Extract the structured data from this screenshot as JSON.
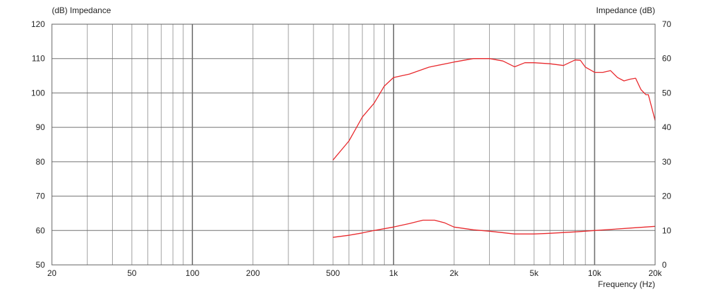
{
  "chart_data": {
    "type": "line",
    "title": "",
    "ylabel_left": "(dB)  Impedance",
    "ylabel_right": "Impedance  (dB)",
    "xlabel": "Frequency  (Hz)",
    "x_scale": "log",
    "xlim": [
      20,
      20000
    ],
    "ylim_left": [
      50,
      120
    ],
    "ylim_right": [
      0,
      70
    ],
    "grid": true,
    "x_ticks": [
      {
        "value": 20,
        "label": "20"
      },
      {
        "value": 50,
        "label": "50"
      },
      {
        "value": 100,
        "label": "100"
      },
      {
        "value": 200,
        "label": "200"
      },
      {
        "value": 500,
        "label": "500"
      },
      {
        "value": 1000,
        "label": "1k"
      },
      {
        "value": 2000,
        "label": "2k"
      },
      {
        "value": 5000,
        "label": "5k"
      },
      {
        "value": 10000,
        "label": "10k"
      },
      {
        "value": 20000,
        "label": "20k"
      }
    ],
    "y_ticks_left": [
      "120",
      "110",
      "100",
      "90",
      "80",
      "70",
      "60",
      "50"
    ],
    "y_ticks_right": [
      "70",
      "60",
      "50",
      "40",
      "30",
      "20",
      "10",
      "0"
    ],
    "colors": {
      "curve": "#e8282c",
      "grid": "#a0a0a0",
      "major_grid": "#707070",
      "frame": "#606060"
    },
    "series": [
      {
        "axis": "left",
        "x": [
          500,
          600,
          700,
          800,
          900,
          1000,
          1200,
          1500,
          2000,
          2500,
          3000,
          3500,
          4000,
          4500,
          5000,
          6000,
          7000,
          8000,
          8500,
          9000,
          10000,
          11000,
          12000,
          13000,
          14000,
          15000,
          16000,
          17000,
          18000,
          18500,
          19000,
          20000
        ],
        "y": [
          80.5,
          86,
          93,
          97,
          102,
          104.5,
          105.5,
          107.5,
          109,
          110,
          110,
          109.3,
          107.6,
          108.8,
          108.8,
          108.5,
          108,
          109.6,
          109.5,
          107.5,
          106,
          106,
          106.5,
          104.5,
          103.5,
          104,
          104.3,
          101,
          99.5,
          99.5,
          97,
          92
        ]
      },
      {
        "axis": "right",
        "x": [
          500,
          600,
          700,
          800,
          1000,
          1200,
          1400,
          1600,
          1800,
          2000,
          2500,
          3000,
          4000,
          5000,
          6000,
          8000,
          10000,
          15000,
          20000
        ],
        "y": [
          8,
          8.6,
          9.3,
          10,
          11,
          12,
          13,
          13,
          12.2,
          11,
          10.2,
          9.8,
          9,
          9,
          9.2,
          9.6,
          10,
          10.7,
          11.2
        ]
      }
    ]
  }
}
